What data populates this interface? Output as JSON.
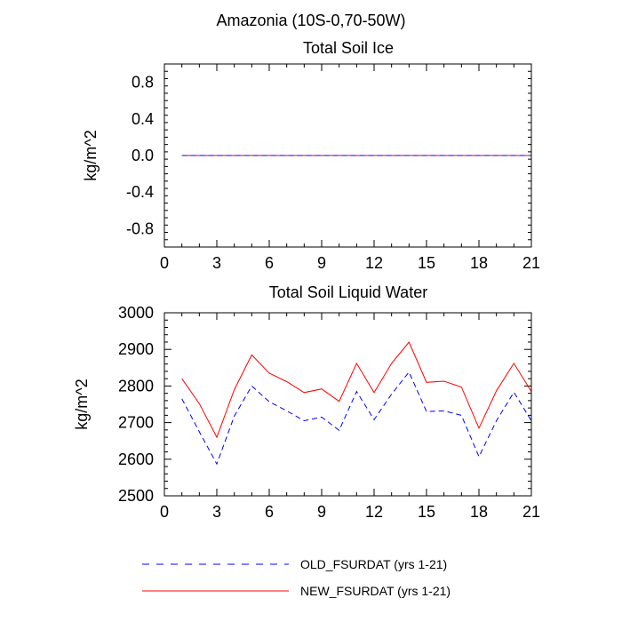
{
  "figure_title": "Amazonia (10S-0,70-50W)",
  "chart_data": [
    {
      "type": "line",
      "title": "Total Soil Ice",
      "xlabel": "",
      "ylabel": "kg/m^2",
      "xlim": [
        0,
        21
      ],
      "ylim": [
        -1.0,
        1.0
      ],
      "xticks": [
        0,
        3,
        6,
        9,
        12,
        15,
        18,
        21
      ],
      "xtick_labels": [
        "0",
        "3",
        "6",
        "9",
        "12",
        "15",
        "18",
        "21"
      ],
      "yticks": [
        -0.8,
        -0.4,
        0.0,
        0.4,
        0.8
      ],
      "ytick_labels": [
        "-0.8",
        "-0.4",
        "0.0",
        "0.4",
        "0.8"
      ],
      "x": [
        1,
        2,
        3,
        4,
        5,
        6,
        7,
        8,
        9,
        10,
        11,
        12,
        13,
        14,
        15,
        16,
        17,
        18,
        19,
        20,
        21
      ],
      "series": [
        {
          "name": "OLD_FSURDAT (yrs 1-21)",
          "color": "#0000ff",
          "style": "dashed",
          "values": [
            0,
            0,
            0,
            0,
            0,
            0,
            0,
            0,
            0,
            0,
            0,
            0,
            0,
            0,
            0,
            0,
            0,
            0,
            0,
            0,
            0
          ]
        },
        {
          "name": "NEW_FSURDAT (yrs 1-21)",
          "color": "#ff0000",
          "style": "solid",
          "values": [
            0,
            0,
            0,
            0,
            0,
            0,
            0,
            0,
            0,
            0,
            0,
            0,
            0,
            0,
            0,
            0,
            0,
            0,
            0,
            0,
            0
          ]
        }
      ]
    },
    {
      "type": "line",
      "title": "Total Soil Liquid Water",
      "xlabel": "",
      "ylabel": "kg/m^2",
      "xlim": [
        0,
        21
      ],
      "ylim": [
        2500,
        3000
      ],
      "xticks": [
        0,
        3,
        6,
        9,
        12,
        15,
        18,
        21
      ],
      "xtick_labels": [
        "0",
        "3",
        "6",
        "9",
        "12",
        "15",
        "18",
        "21"
      ],
      "yticks": [
        2500,
        2600,
        2700,
        2800,
        2900,
        3000
      ],
      "ytick_labels": [
        "2500",
        "2600",
        "2700",
        "2800",
        "2900",
        "3000"
      ],
      "x": [
        1,
        2,
        3,
        4,
        5,
        6,
        7,
        8,
        9,
        10,
        11,
        12,
        13,
        14,
        15,
        16,
        17,
        18,
        19,
        20,
        21
      ],
      "series": [
        {
          "name": "OLD_FSURDAT (yrs 1-21)",
          "color": "#0000ff",
          "style": "dashed",
          "values": [
            2765,
            2675,
            2587,
            2718,
            2800,
            2757,
            2732,
            2705,
            2715,
            2679,
            2785,
            2708,
            2778,
            2838,
            2730,
            2732,
            2720,
            2607,
            2705,
            2783,
            2705
          ]
        },
        {
          "name": "NEW_FSURDAT (yrs 1-21)",
          "color": "#ff0000",
          "style": "solid",
          "values": [
            2820,
            2752,
            2660,
            2790,
            2885,
            2835,
            2812,
            2782,
            2792,
            2758,
            2862,
            2782,
            2862,
            2920,
            2810,
            2813,
            2797,
            2685,
            2787,
            2862,
            2785
          ]
        }
      ]
    }
  ],
  "legend": [
    {
      "name": "OLD_FSURDAT (yrs 1-21)",
      "color": "#0000ff",
      "style": "dashed"
    },
    {
      "name": "NEW_FSURDAT (yrs 1-21)",
      "color": "#ff0000",
      "style": "solid"
    }
  ]
}
